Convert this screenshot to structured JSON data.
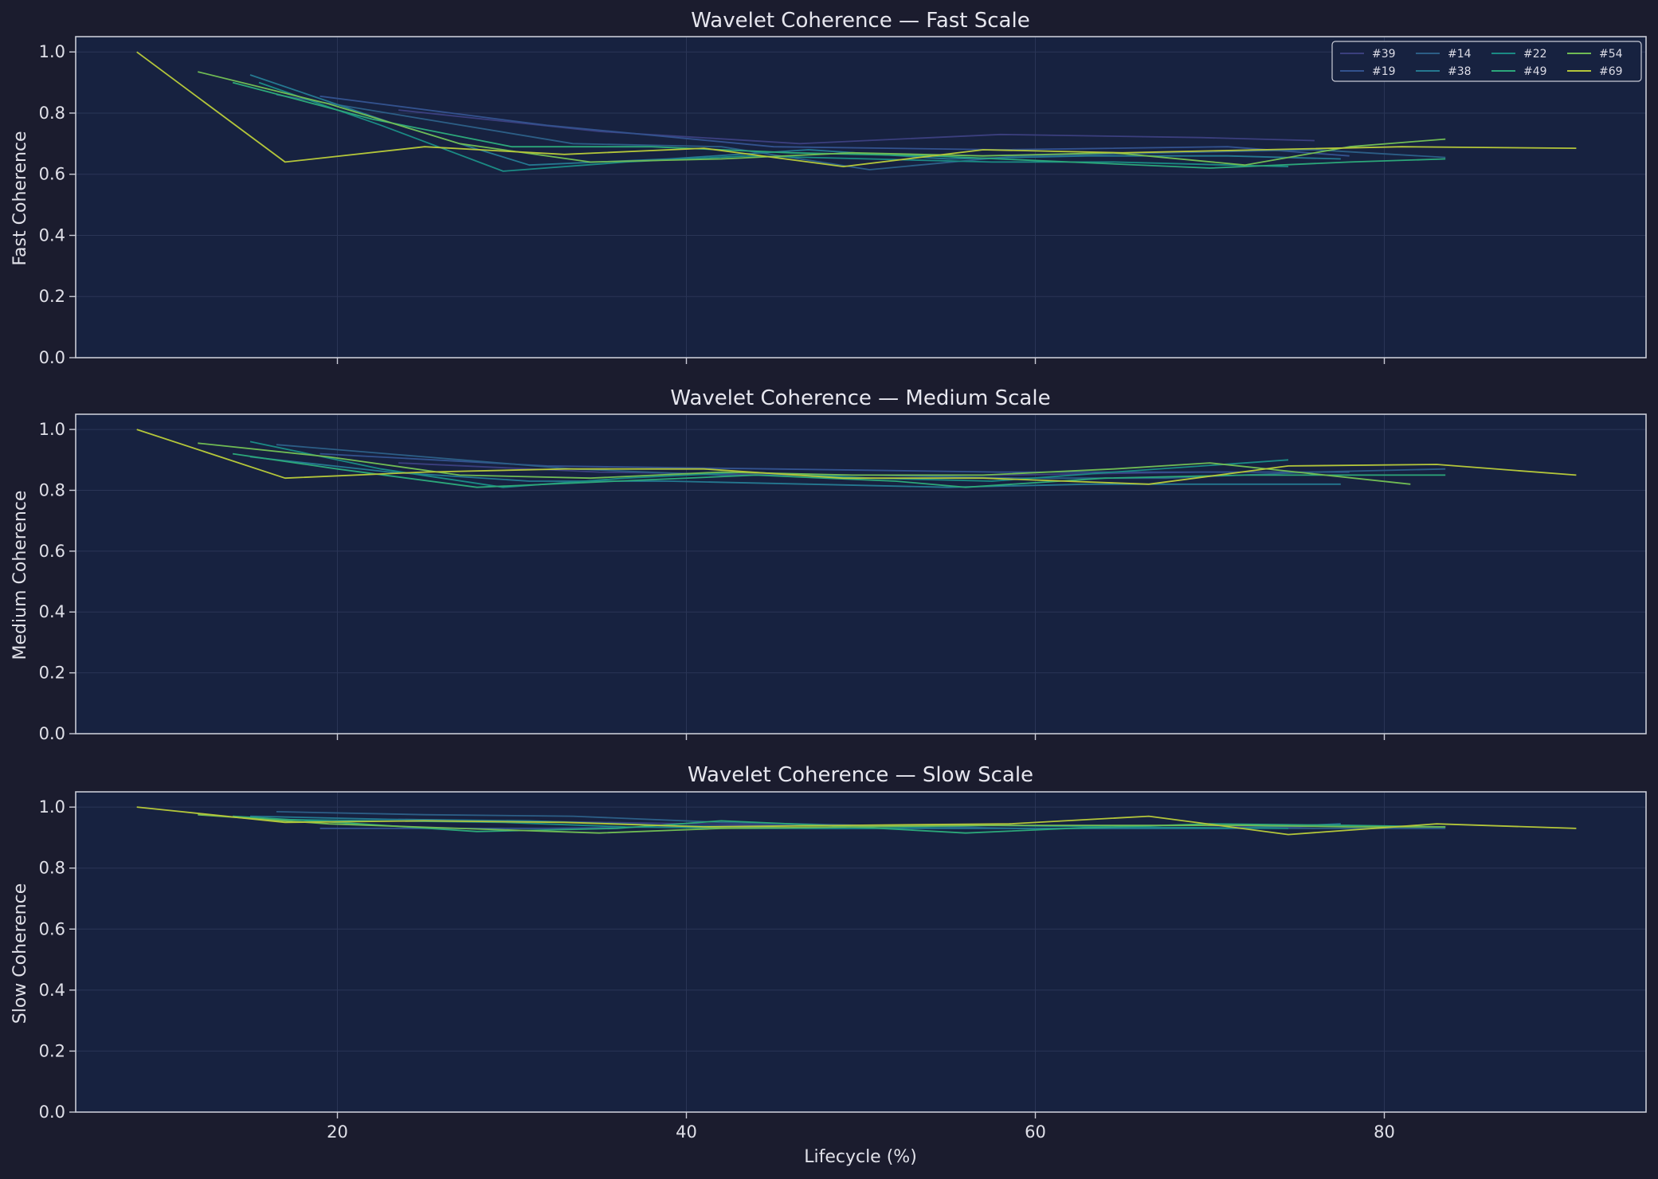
{
  "figure": {
    "background": "#1b1c2e",
    "axes_background": "#172240",
    "frame_color": "#c9cbd6",
    "grid_color": "#2a3556",
    "xlabel": "Lifecycle (%)"
  },
  "legend": {
    "placement": "top-right",
    "entries": [
      {
        "name": "#39",
        "color": "#3b3f7e"
      },
      {
        "name": "#14",
        "color": "#2c5e86"
      },
      {
        "name": "#22",
        "color": "#1b8a84"
      },
      {
        "name": "#54",
        "color": "#70bb54"
      },
      {
        "name": "#19",
        "color": "#33528e"
      },
      {
        "name": "#38",
        "color": "#257890"
      },
      {
        "name": "#49",
        "color": "#2ca77a"
      },
      {
        "name": "#69",
        "color": "#b4c63a"
      }
    ]
  },
  "chart_data": [
    {
      "type": "line",
      "title": "Wavelet Coherence — Fast Scale",
      "ylabel": "Fast Coherence",
      "xlim": [
        5,
        95
      ],
      "ylim": [
        0,
        1.05
      ],
      "xticks": [
        20,
        40,
        60,
        80
      ],
      "yticks": [
        0.0,
        0.2,
        0.4,
        0.6,
        0.8,
        1.0
      ],
      "xtick_labels": [
        "",
        "",
        "",
        ""
      ],
      "ytick_labels": [
        "0.0",
        "0.2",
        "0.4",
        "0.6",
        "0.8",
        "1.0"
      ],
      "grid": true,
      "series": [
        {
          "name": "#39",
          "color": "#3b3f7e",
          "x": [
            23.5,
            35,
            46.5,
            58,
            69.5,
            76
          ],
          "y": [
            0.81,
            0.74,
            0.7,
            0.73,
            0.72,
            0.71
          ]
        },
        {
          "name": "#19",
          "color": "#33528e",
          "x": [
            19,
            32,
            45,
            58,
            71,
            78
          ],
          "y": [
            0.855,
            0.76,
            0.69,
            0.68,
            0.69,
            0.66
          ]
        },
        {
          "name": "#14",
          "color": "#2c5e86",
          "x": [
            16.5,
            25,
            33.5,
            42,
            50.5,
            59,
            67.5,
            76,
            83.5
          ],
          "y": [
            0.86,
            0.78,
            0.7,
            0.69,
            0.615,
            0.66,
            0.67,
            0.68,
            0.655
          ]
        },
        {
          "name": "#38",
          "color": "#257890",
          "x": [
            15,
            23,
            31,
            39,
            47,
            55,
            63,
            71,
            77.5
          ],
          "y": [
            0.925,
            0.77,
            0.63,
            0.65,
            0.68,
            0.65,
            0.66,
            0.66,
            0.65
          ]
        },
        {
          "name": "#22",
          "color": "#1b8a84",
          "x": [
            15.5,
            22.5,
            29.5,
            36.5,
            43.5,
            50.5,
            57.5,
            64.5,
            74.5
          ],
          "y": [
            0.9,
            0.76,
            0.61,
            0.64,
            0.66,
            0.65,
            0.64,
            0.64,
            0.625
          ]
        },
        {
          "name": "#49",
          "color": "#2ca77a",
          "x": [
            14,
            22,
            30,
            38,
            46,
            54,
            62,
            70,
            78,
            83.5
          ],
          "y": [
            0.9,
            0.78,
            0.69,
            0.69,
            0.67,
            0.66,
            0.64,
            0.62,
            0.64,
            0.65
          ]
        },
        {
          "name": "#54",
          "color": "#70bb54",
          "x": [
            12,
            19.5,
            27,
            34.5,
            42,
            49.5,
            57,
            64.5,
            72,
            78,
            83.5
          ],
          "y": [
            0.935,
            0.83,
            0.7,
            0.64,
            0.65,
            0.67,
            0.66,
            0.67,
            0.63,
            0.69,
            0.715
          ]
        },
        {
          "name": "#69",
          "color": "#b4c63a",
          "x": [
            8.5,
            17,
            25,
            33,
            41,
            49,
            57,
            65,
            73,
            81,
            91
          ],
          "y": [
            1.0,
            0.64,
            0.69,
            0.665,
            0.685,
            0.625,
            0.68,
            0.67,
            0.68,
            0.69,
            0.685
          ]
        }
      ]
    },
    {
      "type": "line",
      "title": "Wavelet Coherence — Medium Scale",
      "ylabel": "Medium Coherence",
      "xlim": [
        5,
        95
      ],
      "ylim": [
        0,
        1.05
      ],
      "xticks": [
        20,
        40,
        60,
        80
      ],
      "yticks": [
        0.0,
        0.2,
        0.4,
        0.6,
        0.8,
        1.0
      ],
      "xtick_labels": [
        "",
        "",
        "",
        ""
      ],
      "ytick_labels": [
        "0.0",
        "0.2",
        "0.4",
        "0.6",
        "0.8",
        "1.0"
      ],
      "grid": true,
      "series": [
        {
          "name": "#39",
          "color": "#3b3f7e",
          "x": [
            23.5,
            35,
            46.5,
            58,
            69.5,
            76
          ],
          "y": [
            0.89,
            0.86,
            0.85,
            0.85,
            0.86,
            0.86
          ]
        },
        {
          "name": "#19",
          "color": "#33528e",
          "x": [
            19,
            32,
            45,
            58,
            71,
            78
          ],
          "y": [
            0.92,
            0.88,
            0.87,
            0.86,
            0.86,
            0.86
          ]
        },
        {
          "name": "#14",
          "color": "#2c5e86",
          "x": [
            16.5,
            25,
            33.5,
            42,
            50.5,
            59,
            67.5,
            76,
            83.5
          ],
          "y": [
            0.95,
            0.91,
            0.87,
            0.85,
            0.85,
            0.84,
            0.84,
            0.86,
            0.87
          ]
        },
        {
          "name": "#38",
          "color": "#257890",
          "x": [
            15,
            23,
            31,
            39,
            47,
            55,
            63,
            71,
            77.5
          ],
          "y": [
            0.91,
            0.86,
            0.83,
            0.83,
            0.82,
            0.81,
            0.82,
            0.82,
            0.82
          ]
        },
        {
          "name": "#22",
          "color": "#1b8a84",
          "x": [
            15,
            22.5,
            29.5,
            36.5,
            43.5,
            50.5,
            57.5,
            64.5,
            74.5
          ],
          "y": [
            0.96,
            0.87,
            0.81,
            0.84,
            0.86,
            0.84,
            0.83,
            0.86,
            0.9
          ]
        },
        {
          "name": "#49",
          "color": "#2ca77a",
          "x": [
            14,
            20,
            28,
            36,
            44,
            52,
            56,
            64,
            72,
            78,
            83.5
          ],
          "y": [
            0.92,
            0.87,
            0.81,
            0.83,
            0.85,
            0.83,
            0.81,
            0.84,
            0.85,
            0.85,
            0.85
          ]
        },
        {
          "name": "#54",
          "color": "#70bb54",
          "x": [
            12,
            19.5,
            27,
            34.5,
            42,
            49.5,
            57,
            64.5,
            70,
            75,
            81.5
          ],
          "y": [
            0.955,
            0.91,
            0.85,
            0.84,
            0.86,
            0.85,
            0.85,
            0.87,
            0.89,
            0.86,
            0.82
          ]
        },
        {
          "name": "#69",
          "color": "#b4c63a",
          "x": [
            8.5,
            17,
            25,
            33,
            41,
            49,
            57,
            66.5,
            74.5,
            83,
            91
          ],
          "y": [
            1.0,
            0.84,
            0.86,
            0.87,
            0.87,
            0.84,
            0.84,
            0.82,
            0.88,
            0.885,
            0.85
          ]
        }
      ]
    },
    {
      "type": "line",
      "title": "Wavelet Coherence — Slow Scale",
      "ylabel": "Slow Coherence",
      "xlim": [
        5,
        95
      ],
      "ylim": [
        0,
        1.05
      ],
      "xticks": [
        20,
        40,
        60,
        80
      ],
      "yticks": [
        0.0,
        0.2,
        0.4,
        0.6,
        0.8,
        1.0
      ],
      "xtick_labels": [
        "20",
        "40",
        "60",
        "80"
      ],
      "ytick_labels": [
        "0.0",
        "0.2",
        "0.4",
        "0.6",
        "0.8",
        "1.0"
      ],
      "grid": true,
      "series": [
        {
          "name": "#39",
          "color": "#3b3f7e",
          "x": [
            23.5,
            35,
            46.5,
            58,
            69.5,
            76
          ],
          "y": [
            0.96,
            0.95,
            0.94,
            0.94,
            0.94,
            0.93
          ]
        },
        {
          "name": "#19",
          "color": "#33528e",
          "x": [
            19,
            32,
            45,
            58,
            71,
            78
          ],
          "y": [
            0.93,
            0.93,
            0.94,
            0.94,
            0.93,
            0.94
          ]
        },
        {
          "name": "#14",
          "color": "#2c5e86",
          "x": [
            16.5,
            25,
            33.5,
            42,
            50.5,
            59,
            67.5,
            76,
            83.5
          ],
          "y": [
            0.985,
            0.975,
            0.97,
            0.95,
            0.94,
            0.93,
            0.93,
            0.93,
            0.93
          ]
        },
        {
          "name": "#38",
          "color": "#257890",
          "x": [
            15,
            23,
            31,
            39,
            47,
            55,
            63,
            71,
            77.5
          ],
          "y": [
            0.97,
            0.96,
            0.955,
            0.94,
            0.93,
            0.93,
            0.93,
            0.93,
            0.945
          ]
        },
        {
          "name": "#22",
          "color": "#1b8a84",
          "x": [
            15.5,
            22.5,
            29.5,
            36.5,
            43.5,
            50.5,
            57.5,
            64.5,
            74.5
          ],
          "y": [
            0.96,
            0.955,
            0.95,
            0.935,
            0.93,
            0.93,
            0.94,
            0.935,
            0.93
          ]
        },
        {
          "name": "#49",
          "color": "#2ca77a",
          "x": [
            14,
            20,
            28,
            36,
            42,
            48,
            56,
            62,
            70,
            78,
            83.5
          ],
          "y": [
            0.97,
            0.95,
            0.92,
            0.93,
            0.955,
            0.94,
            0.915,
            0.93,
            0.945,
            0.94,
            0.935
          ]
        },
        {
          "name": "#54",
          "color": "#70bb54",
          "x": [
            12,
            19.5,
            27,
            35,
            42,
            49.5,
            57,
            64.5,
            72,
            78,
            83.5
          ],
          "y": [
            0.975,
            0.945,
            0.93,
            0.915,
            0.93,
            0.935,
            0.94,
            0.94,
            0.94,
            0.935,
            0.935
          ]
        },
        {
          "name": "#69",
          "color": "#b4c63a",
          "x": [
            8.5,
            17,
            25,
            33,
            41,
            49,
            58.5,
            66.5,
            74.5,
            83,
            91
          ],
          "y": [
            1.0,
            0.95,
            0.955,
            0.95,
            0.935,
            0.94,
            0.945,
            0.97,
            0.91,
            0.945,
            0.93
          ]
        }
      ]
    }
  ]
}
